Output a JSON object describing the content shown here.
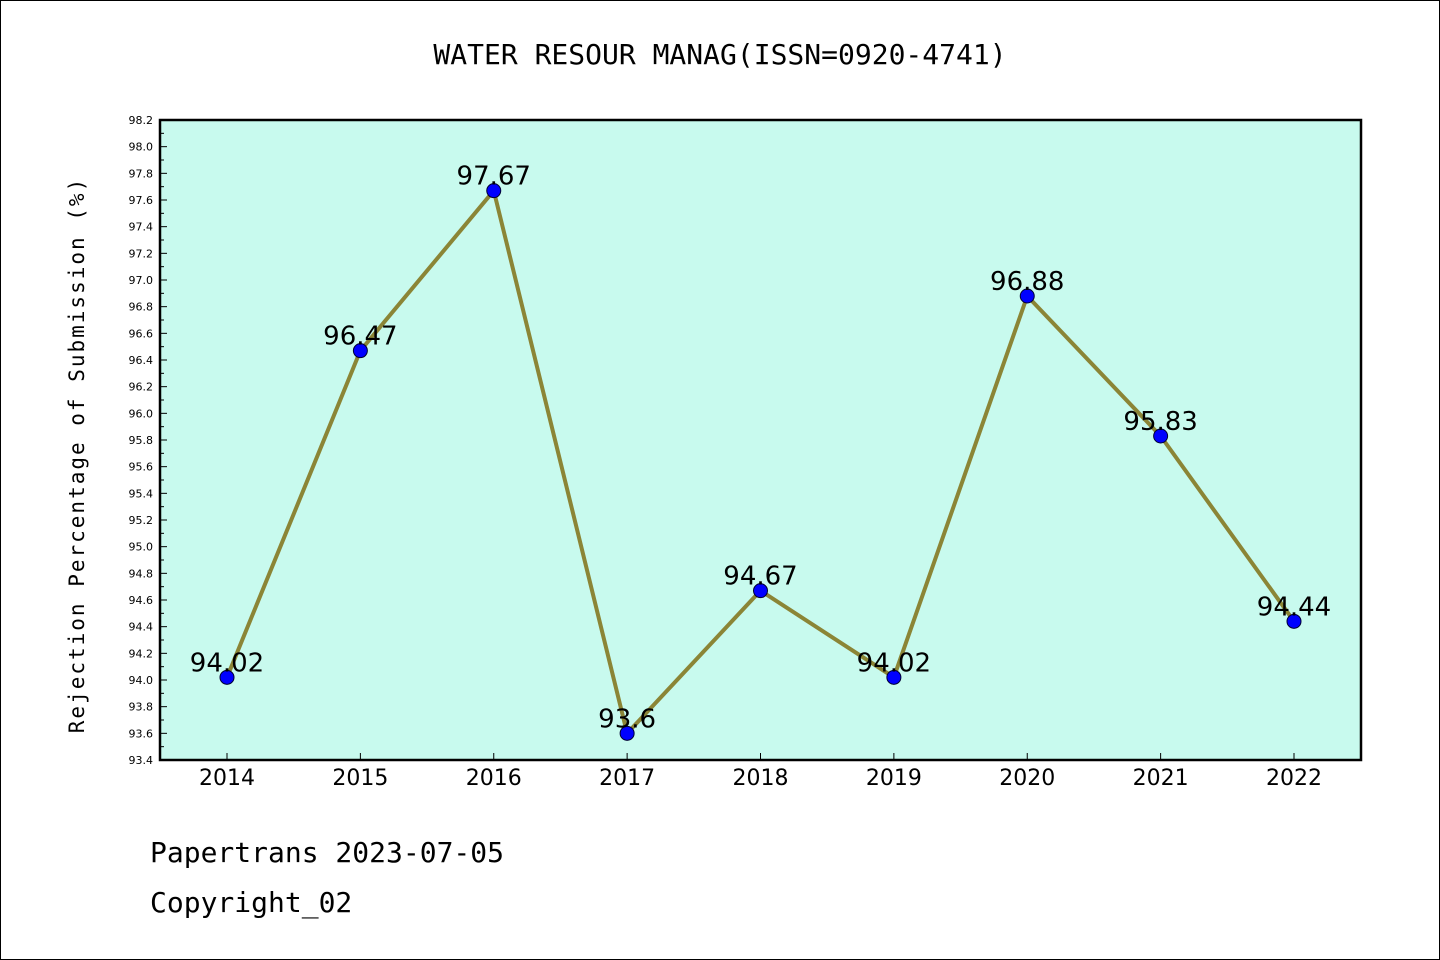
{
  "chart_data": {
    "type": "line",
    "title": "WATER RESOUR MANAG(ISSN=0920-4741)",
    "xlabel": "",
    "ylabel": "Rejection Percentage of Submission (%)",
    "categories": [
      "2014",
      "2015",
      "2016",
      "2017",
      "2018",
      "2019",
      "2020",
      "2021",
      "2022"
    ],
    "series": [
      {
        "values": [
          94.02,
          96.47,
          97.67,
          93.6,
          94.67,
          94.02,
          96.88,
          95.83,
          94.44
        ],
        "labels": [
          "94.02",
          "96.47",
          "97.67",
          "93.6",
          "94.67",
          "94.02",
          "96.88",
          "95.83",
          "94.44"
        ],
        "line_color": "#8B8536",
        "marker_color": "#0000FF"
      }
    ],
    "ylim": [
      93.4,
      98.2
    ],
    "yticks": [
      "93.4",
      "93.6",
      "93.8",
      "94.0",
      "94.2",
      "94.4",
      "94.6",
      "94.8",
      "95.0",
      "95.2",
      "95.4",
      "95.6",
      "95.8",
      "96.0",
      "96.2",
      "96.4",
      "96.6",
      "96.8",
      "97.0",
      "97.2",
      "97.4",
      "97.6",
      "97.8",
      "98.0",
      "98.2"
    ],
    "plot_background": "#C8FAEE",
    "grid": false,
    "legend": "none"
  },
  "footer": {
    "date_text": "Papertrans 2023-07-05",
    "copyright_text": "Copyright_02"
  }
}
